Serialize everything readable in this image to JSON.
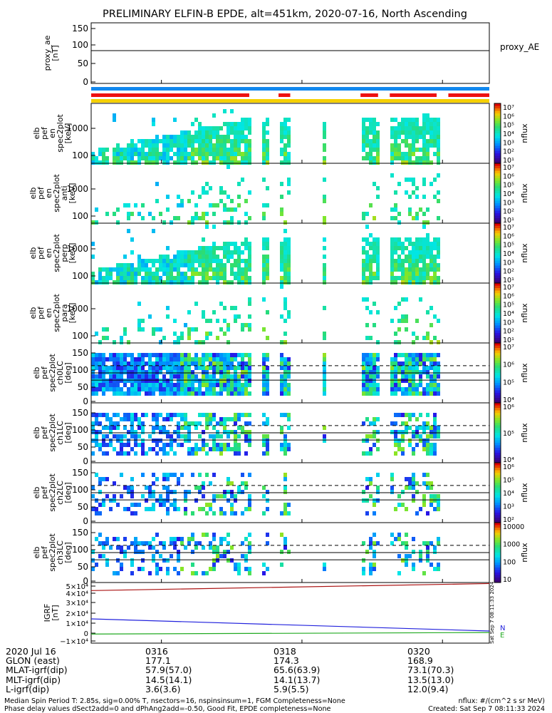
{
  "title": "PRELIMINARY ELFIN-B EPDE, alt=451km, 2020-07-16, North Ascending",
  "colors": {
    "red": "#ee1111",
    "blue": "#1188ee",
    "yellow": "#f5d000",
    "blue_line": "#2222dd",
    "red_line": "#aa1111",
    "green_line": "#22aa22"
  },
  "x_axis": {
    "row_labels": [
      "2020 Jul 16",
      "GLON (east)",
      "MLAT-igrf(dip)",
      "MLT-igrf(dip)",
      "L-igrf(dip)"
    ],
    "ticks": [
      {
        "time": "0316",
        "glon": "177.1",
        "mlat": "57.9(57.0)",
        "mlt": "14.5(14.1)",
        "l": "3.6(3.6)"
      },
      {
        "time": "0318",
        "glon": "174.3",
        "mlat": "65.6(63.9)",
        "mlt": "14.1(13.7)",
        "l": "5.9(5.5)"
      },
      {
        "time": "0320",
        "glon": "168.9",
        "mlat": "73.1(70.3)",
        "mlt": "13.5(13.0)",
        "l": "12.0(9.4)"
      }
    ]
  },
  "panels": [
    {
      "ylabel": "proxy_ae\n[nT]",
      "side_label": "proxy_AE",
      "yticks": [
        "150",
        "100",
        "50",
        "0"
      ]
    },
    {
      "ylabel": "elb\npef\nen\nspec2plot\n[keV]",
      "yticks": [
        "1000",
        "100"
      ],
      "cbar_label": "nflux"
    },
    {
      "ylabel": "elb\npef\nen\nspec2plot\nanti\n[keV]",
      "yticks": [
        "1000",
        "100"
      ],
      "cbar_label": "nflux"
    },
    {
      "ylabel": "elb\npef\nen\nspec2plot\nperp\n[keV]",
      "yticks": [
        "1000",
        "100"
      ],
      "cbar_label": "nflux"
    },
    {
      "ylabel": "elb\npef\nen\nspec2plot\npara\n[keV]",
      "yticks": [
        "1000",
        "100"
      ],
      "cbar_label": "nflux"
    },
    {
      "ylabel": "elb\npef\nspec2plot\nch0LC\n[deg]",
      "yticks": [
        "150",
        "100",
        "50",
        "0"
      ],
      "cbar_label": "nflux"
    },
    {
      "ylabel": "elb\npef\nspec2plot\nch1LC\n[deg]",
      "yticks": [
        "150",
        "100",
        "50",
        "0"
      ],
      "cbar_label": "nflux"
    },
    {
      "ylabel": "elb\npef\nspec2plot\nch2LC\n[deg]",
      "yticks": [
        "150",
        "100",
        "50",
        "0"
      ],
      "cbar_label": "nflux"
    },
    {
      "ylabel": "elb\npef\nspec2plot\nch3LC\n[deg]",
      "yticks": [
        "150",
        "100",
        "50",
        "0"
      ],
      "cbar_label": "nflux"
    },
    {
      "ylabel": "IGRF\n[nT]",
      "yticks": [
        "5×10⁴",
        "4×10⁴",
        "3×10⁴",
        "2×10⁴",
        "1×10⁴",
        "0",
        "−1×10⁴"
      ],
      "legend": [
        "N",
        "E"
      ]
    }
  ],
  "colorbars": [
    [
      "10⁷",
      "10⁶",
      "10⁵",
      "10⁴",
      "10³",
      "10²",
      "10¹"
    ],
    [
      "10⁷",
      "10⁶",
      "10⁵",
      "10⁴",
      "10³",
      "10²",
      "10¹"
    ],
    [
      "10⁷",
      "10⁶",
      "10⁵",
      "10⁴",
      "10³",
      "10²",
      "10¹"
    ],
    [
      "10⁷",
      "10⁶",
      "10⁵",
      "10⁴",
      "10³",
      "10²",
      "10¹"
    ],
    [
      "10⁷",
      "10⁶",
      "10⁵",
      "10⁴"
    ],
    [
      "10⁶",
      "10⁵",
      "10⁴"
    ],
    [
      "10⁶",
      "10⁵",
      "10⁴",
      "10³",
      "10²"
    ],
    [
      "10000",
      "1000",
      "100",
      "10"
    ]
  ],
  "sidebar_text": "Sat Sep  7 08:11:33 2024",
  "footer_notes": {
    "line1": "Median Spin Period T: 2.85s, sig=0.00% T, nsectors=16, nspinsinsum=1, FGM Completeness=None",
    "line1_right": "nflux: #/(cm^2 s sr MeV)",
    "line2": "Phase delay values dSect2add=0 and dPhAng2add=-0.50, Good Fit, EPDE completeness=None",
    "line2_right": "Created: Sat Sep  7 08:11:33 2024"
  },
  "chart_data": {
    "type": "heatmap",
    "title": "PRELIMINARY ELFIN-B EPDE, alt=451km, 2020-07-16, North Ascending",
    "x_range": [
      "03:15:00",
      "03:20:40"
    ],
    "x_ticks": [
      "0316",
      "0318",
      "0320"
    ],
    "proxy_ae": {
      "values": [
        88
      ],
      "ylim": [
        0,
        150
      ]
    },
    "science_bars": [
      {
        "color": "red",
        "segments": [
          [
            "03:15:00",
            "03:17:15"
          ],
          [
            "03:17:40",
            "03:17:50"
          ],
          [
            "03:18:50",
            "03:19:05"
          ],
          [
            "03:19:15",
            "03:19:55"
          ],
          [
            "03:20:05",
            "03:20:40"
          ]
        ]
      },
      {
        "color": "blue",
        "segments": [
          [
            "03:15:00",
            "03:20:40"
          ]
        ]
      },
      {
        "color": "yellow",
        "segments": [
          [
            "03:15:00",
            "03:20:40"
          ]
        ]
      }
    ],
    "energy_spectrograms": {
      "ylim_keV": [
        60,
        6000
      ],
      "log_y": true,
      "clim_nflux": [
        10,
        10000000
      ],
      "data_intervals": [
        [
          "03:15:00",
          "03:17:15"
        ],
        [
          "03:17:25",
          "03:17:30"
        ],
        [
          "03:17:40",
          "03:17:50"
        ],
        [
          "03:18:15",
          "03:18:20"
        ],
        [
          "03:18:50",
          "03:19:05"
        ],
        [
          "03:19:15",
          "03:19:55"
        ]
      ]
    },
    "pitch_angle_spectrograms": {
      "ylim_deg": [
        0,
        180
      ],
      "reference_lines_deg": [
        70,
        90,
        110
      ]
    },
    "igrf": {
      "ylabel": "IGRF [nT]",
      "ylim": [
        -10000,
        50000
      ],
      "series": [
        {
          "name": "N",
          "x": [
            "03:15:00",
            "03:20:40"
          ],
          "values": [
            14000,
            2000
          ]
        },
        {
          "name": "E",
          "x": [
            "03:15:00",
            "03:20:40"
          ],
          "values": [
            -1000,
            500
          ]
        },
        {
          "x": [
            "03:15:00",
            "03:20:40"
          ],
          "values": [
            42000,
            49000
          ]
        }
      ]
    }
  }
}
